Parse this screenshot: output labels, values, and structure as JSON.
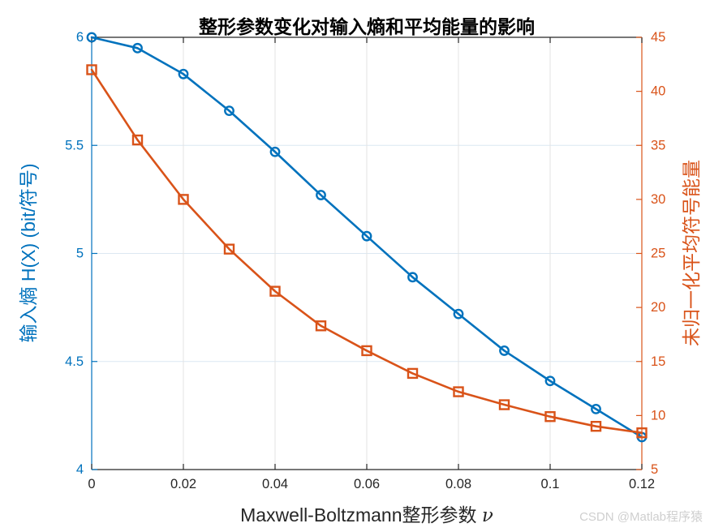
{
  "figure": {
    "watermark": "CSDN @Matlab程序猿"
  },
  "colors": {
    "left_accent": "#0072BD",
    "right_accent": "#D95319",
    "axis_dark": "#262626",
    "tick_label": "#262626",
    "grid_h": "#dce8f2",
    "grid_v": "#e3e3e3",
    "watermark": "#cfcfcf",
    "background": "#ffffff"
  },
  "chart_data": {
    "type": "line",
    "title": "整形参数变化对输入熵和平均能量的影响",
    "xlabel": "Maxwell-Boltzmann整形参数 ν",
    "xlabel_prefix": "Maxwell-Boltzmann整形参数 ",
    "xlabel_symbol": "ν",
    "xlim": [
      0,
      0.12
    ],
    "x": [
      0,
      0.01,
      0.02,
      0.03,
      0.04,
      0.05,
      0.06,
      0.07,
      0.08,
      0.09,
      0.1,
      0.11,
      0.12
    ],
    "x_ticks": [
      0,
      0.02,
      0.04,
      0.06,
      0.08,
      0.1,
      0.12
    ],
    "x_tick_labels": [
      "0",
      "0.02",
      "0.04",
      "0.06",
      "0.08",
      "0.1",
      "0.12"
    ],
    "grid": true,
    "legend_position": "none",
    "left_axis": {
      "label": "输入熵 H(X) (bit/符号)",
      "color": "#0072BD",
      "lim": [
        4,
        6
      ],
      "ticks": [
        4,
        4.5,
        5,
        5.5,
        6
      ],
      "tick_labels": [
        "4",
        "4.5",
        "5",
        "5.5",
        "6"
      ]
    },
    "right_axis": {
      "label": "未归一化平均符号能量",
      "color": "#D95319",
      "lim": [
        5,
        45
      ],
      "ticks": [
        5,
        10,
        15,
        20,
        25,
        30,
        35,
        40,
        45
      ],
      "tick_labels": [
        "5",
        "10",
        "15",
        "20",
        "25",
        "30",
        "35",
        "40",
        "45"
      ]
    },
    "series": [
      {
        "name": "输入熵 H(X)",
        "axis": "left",
        "color": "#0072BD",
        "marker": "circle",
        "values": [
          6.0,
          5.95,
          5.83,
          5.66,
          5.47,
          5.27,
          5.08,
          4.89,
          4.72,
          4.55,
          4.41,
          4.28,
          4.15
        ]
      },
      {
        "name": "未归一化平均符号能量",
        "axis": "right",
        "color": "#D95319",
        "marker": "square",
        "values": [
          42.0,
          35.5,
          30.0,
          25.4,
          21.5,
          18.3,
          16.0,
          13.9,
          12.2,
          11.0,
          9.9,
          9.0,
          8.4
        ]
      }
    ]
  }
}
